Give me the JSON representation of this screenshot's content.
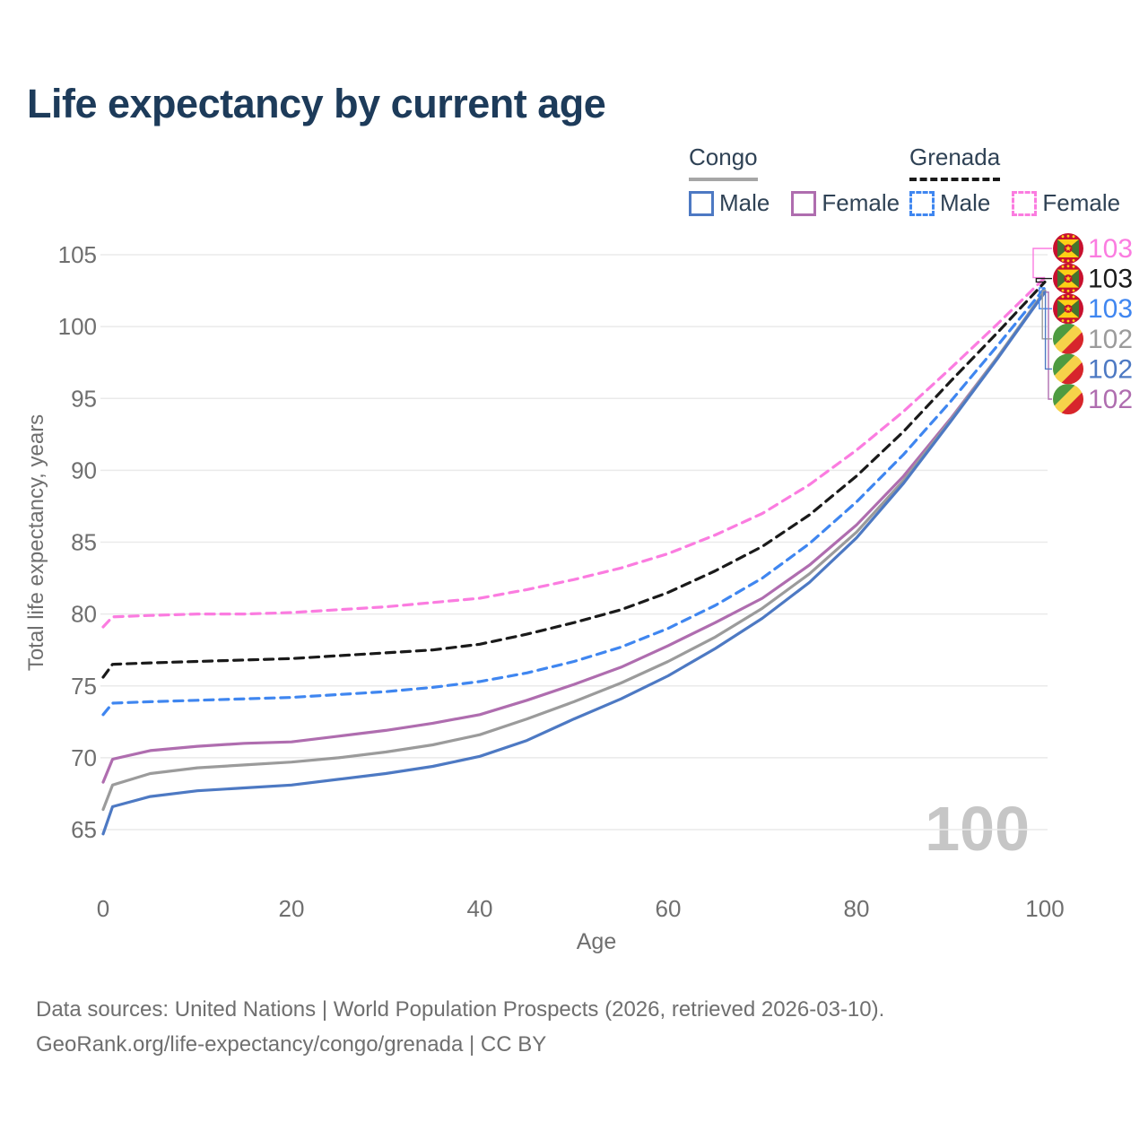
{
  "title": "Life expectancy by current age",
  "legend": {
    "groups": [
      {
        "id": "congo",
        "label": "Congo",
        "style": "solid",
        "underline_color": "#a6a6a6",
        "items": [
          {
            "id": "congo-male",
            "label": "Male",
            "color": "#4d79c3"
          },
          {
            "id": "congo-female",
            "label": "Female",
            "color": "#af6daf"
          }
        ]
      },
      {
        "id": "grenada",
        "label": "Grenada",
        "style": "dashed",
        "underline_color": "#1a1a1a",
        "items": [
          {
            "id": "grenada-male",
            "label": "Male",
            "color": "#3f86f0"
          },
          {
            "id": "grenada-female",
            "label": "Female",
            "color": "#fb7ce0"
          }
        ]
      }
    ]
  },
  "watermark": "100",
  "footer": {
    "line1": "Data sources: United Nations | World Population Prospects (2026, retrieved 2026-03-10).",
    "line2": "GeoRank.org/life-expectancy/congo/grenada | CC BY"
  },
  "colors": {
    "title_text": "#1d3b5a",
    "axis_text": "#6f6f6f",
    "gridline": "#eaeaea",
    "watermark": "#c6c6c6"
  },
  "chart_data": {
    "type": "line",
    "title": "Life expectancy by current age",
    "xlabel": "Age",
    "ylabel": "Total life expectancy, years",
    "xlim": [
      0,
      100
    ],
    "ylim": [
      65,
      105
    ],
    "x_ticks": [
      0,
      20,
      40,
      60,
      80,
      100
    ],
    "y_ticks": [
      65,
      70,
      75,
      80,
      85,
      90,
      95,
      100,
      105
    ],
    "grid": true,
    "legend_position": "top-right",
    "x": [
      0,
      1,
      5,
      10,
      15,
      20,
      25,
      30,
      35,
      40,
      45,
      50,
      55,
      60,
      65,
      70,
      75,
      80,
      85,
      90,
      95,
      100
    ],
    "series": [
      {
        "id": "grenada-female",
        "name": "Grenada Female",
        "country": "Grenada",
        "sex": "Female",
        "color": "#fb7ce0",
        "dash": true,
        "values": [
          79.1,
          79.8,
          79.9,
          80.0,
          80.0,
          80.1,
          80.3,
          80.5,
          80.8,
          81.1,
          81.7,
          82.4,
          83.2,
          84.2,
          85.5,
          87.0,
          89.0,
          91.4,
          94.1,
          97.1,
          100.2,
          103.4
        ],
        "end_label": {
          "text": "103",
          "row": 0,
          "flag": "grenada"
        }
      },
      {
        "id": "grenada-both",
        "name": "Grenada Both sexes",
        "country": "Grenada",
        "sex": "Both",
        "color": "#1a1a1a",
        "dash": true,
        "values": [
          75.6,
          76.5,
          76.6,
          76.7,
          76.8,
          76.9,
          77.1,
          77.3,
          77.5,
          77.9,
          78.6,
          79.4,
          80.3,
          81.5,
          83.0,
          84.7,
          86.9,
          89.6,
          92.7,
          96.2,
          99.6,
          103.1
        ],
        "end_label": {
          "text": "103",
          "row": 1,
          "flag": "grenada"
        }
      },
      {
        "id": "grenada-male",
        "name": "Grenada Male",
        "country": "Grenada",
        "sex": "Male",
        "color": "#3f86f0",
        "dash": true,
        "values": [
          73.0,
          73.8,
          73.9,
          74.0,
          74.1,
          74.2,
          74.4,
          74.6,
          74.9,
          75.3,
          75.9,
          76.7,
          77.7,
          79.0,
          80.6,
          82.5,
          84.9,
          87.8,
          91.1,
          94.8,
          98.7,
          102.7
        ],
        "end_label": {
          "text": "103",
          "row": 2,
          "flag": "grenada"
        }
      },
      {
        "id": "congo-female",
        "name": "Congo Female",
        "country": "Congo",
        "sex": "Female",
        "color": "#af6daf",
        "dash": false,
        "values": [
          68.3,
          69.9,
          70.5,
          70.8,
          71.0,
          71.1,
          71.5,
          71.9,
          72.4,
          73.0,
          74.0,
          75.1,
          76.3,
          77.8,
          79.4,
          81.1,
          83.4,
          86.2,
          89.6,
          93.6,
          97.9,
          102.4
        ],
        "end_label": {
          "text": "102",
          "row": 5,
          "flag": "congo"
        }
      },
      {
        "id": "congo-both",
        "name": "Congo Both sexes",
        "country": "Congo",
        "sex": "Both",
        "color": "#9b9b9b",
        "dash": false,
        "values": [
          66.4,
          68.1,
          68.9,
          69.3,
          69.5,
          69.7,
          70.0,
          70.4,
          70.9,
          71.6,
          72.7,
          73.9,
          75.2,
          76.7,
          78.4,
          80.4,
          82.8,
          85.7,
          89.3,
          93.5,
          97.9,
          102.5
        ],
        "end_label": {
          "text": "102",
          "row": 3,
          "flag": "congo"
        }
      },
      {
        "id": "congo-male",
        "name": "Congo Male",
        "country": "Congo",
        "sex": "Male",
        "color": "#4d79c3",
        "dash": false,
        "values": [
          64.7,
          66.6,
          67.3,
          67.7,
          67.9,
          68.1,
          68.5,
          68.9,
          69.4,
          70.1,
          71.2,
          72.7,
          74.1,
          75.7,
          77.6,
          79.7,
          82.2,
          85.3,
          89.1,
          93.4,
          97.8,
          102.4
        ],
        "end_label": {
          "text": "102",
          "row": 4,
          "flag": "congo"
        }
      }
    ]
  }
}
